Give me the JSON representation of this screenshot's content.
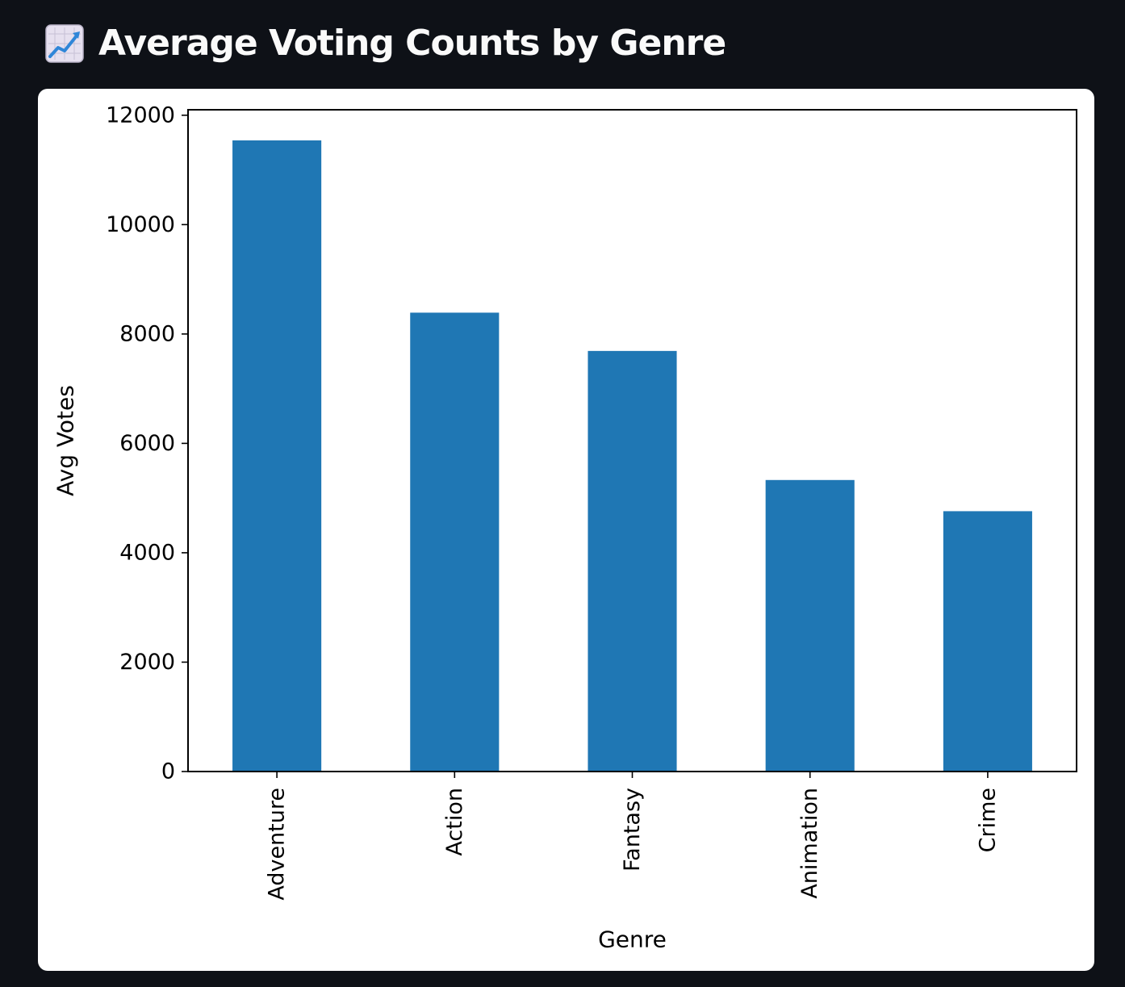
{
  "header": {
    "title": "Average Voting Counts by Genre",
    "icon": "chart-increasing-icon"
  },
  "colors": {
    "page_background": "#0e1117",
    "card_background": "#ffffff",
    "bar": "#1f77b4",
    "title_text": "#fafafa"
  },
  "chart_data": {
    "type": "bar",
    "categories": [
      "Adventure",
      "Action",
      "Fantasy",
      "Animation",
      "Crime"
    ],
    "values": [
      11540,
      8390,
      7690,
      5330,
      4760
    ],
    "title": "",
    "xlabel": "Genre",
    "ylabel": "Avg Votes",
    "ylim": [
      0,
      12100
    ],
    "yticks": [
      0,
      2000,
      4000,
      6000,
      8000,
      10000,
      12000
    ],
    "ytick_labels": [
      "0",
      "2000",
      "4000",
      "6000",
      "8000",
      "10000",
      "12000"
    ],
    "grid": false,
    "legend": "none",
    "x_tick_rotation": "vertical"
  }
}
